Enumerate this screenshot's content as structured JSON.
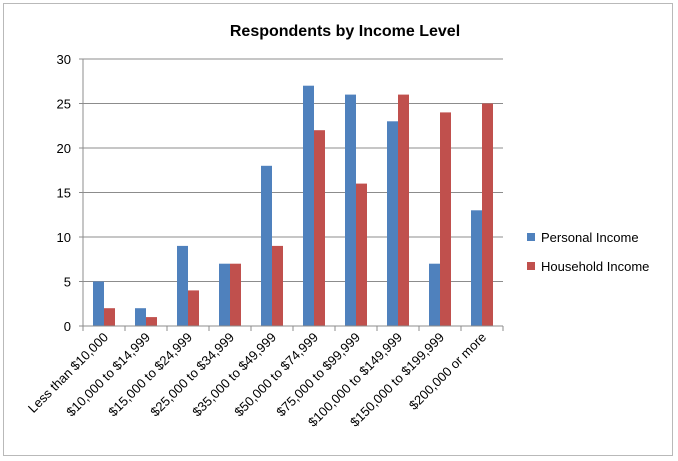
{
  "chart_data": {
    "type": "bar",
    "title": "Respondents by Income Level",
    "xlabel": "",
    "ylabel": "",
    "ylim": [
      0,
      30
    ],
    "yticks": [
      0,
      5,
      10,
      15,
      20,
      25,
      30
    ],
    "grid": true,
    "legend": "right",
    "categories": [
      "Less than $10,000",
      "$10,000 to $14,999",
      "$15,000 to $24,999",
      "$25,000 to $34,999",
      "$35,000 to $49,999",
      "$50,000 to $74,999",
      "$75,000 to $99,999",
      "$100,000 to $149,999",
      "$150,000 to $199,999",
      "$200,000 or more"
    ],
    "series": [
      {
        "name": "Personal Income",
        "color": "#4f81bd",
        "values": [
          5,
          2,
          9,
          7,
          18,
          27,
          26,
          23,
          7,
          13
        ]
      },
      {
        "name": "Household Income",
        "color": "#c0504d",
        "values": [
          2,
          1,
          4,
          7,
          9,
          22,
          16,
          26,
          24,
          25
        ]
      }
    ]
  }
}
